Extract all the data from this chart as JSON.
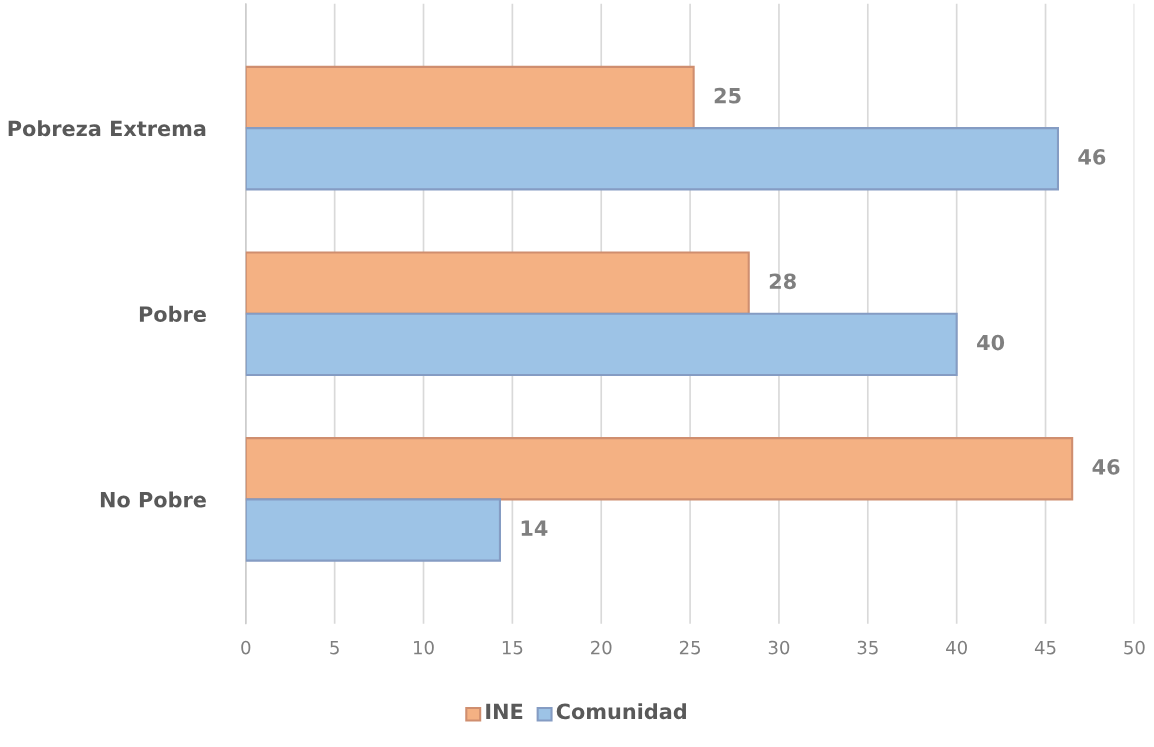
{
  "chart_data": {
    "type": "bar",
    "orientation": "horizontal",
    "categories": [
      "Pobreza Extrema",
      "Pobre",
      "No Pobre"
    ],
    "series": [
      {
        "name": "INE",
        "color": "#f4b183",
        "values": [
          25.2,
          28.3,
          46.5
        ],
        "value_labels": [
          "25",
          "28",
          "46"
        ]
      },
      {
        "name": "Comunidad",
        "color": "#9dc3e6",
        "values": [
          45.7,
          40.0,
          14.3
        ],
        "value_labels": [
          "46",
          "40",
          "14"
        ]
      }
    ],
    "xlim": [
      0,
      50
    ],
    "xticks": [
      0,
      5,
      10,
      15,
      20,
      25,
      30,
      35,
      40,
      45,
      50
    ],
    "grid": "x",
    "legend": "bottom"
  }
}
